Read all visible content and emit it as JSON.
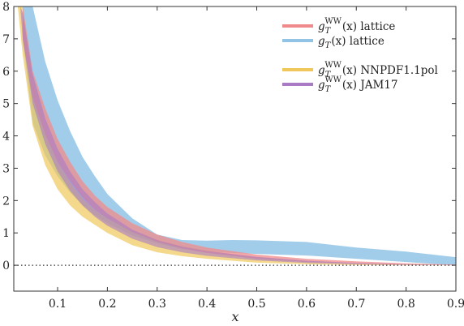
{
  "chart_data": {
    "type": "area",
    "xlabel": "x",
    "ylabel": "",
    "xlim": [
      0.012,
      0.9
    ],
    "ylim": [
      -0.8,
      8
    ],
    "xticks": [
      "0.1",
      "0.2",
      "0.3",
      "0.4",
      "0.5",
      "0.6",
      "0.7",
      "0.8",
      "0.9"
    ],
    "yticks": [
      "0",
      "1",
      "2",
      "3",
      "4",
      "5",
      "6",
      "7",
      "8"
    ],
    "grid": false,
    "legend_position": "top-right",
    "zero_line": "dotted",
    "series": [
      {
        "name": "g_T^WW(x) lattice",
        "legend": "gTWW(x) lattice",
        "color": "#f08a8a",
        "x": [
          0.03,
          0.05,
          0.075,
          0.1,
          0.125,
          0.15,
          0.175,
          0.2,
          0.25,
          0.3,
          0.35,
          0.4,
          0.5,
          0.6,
          0.7,
          0.8,
          0.9
        ],
        "upper": [
          8.0,
          6.0,
          4.85,
          3.9,
          3.2,
          2.6,
          2.15,
          1.8,
          1.3,
          0.95,
          0.72,
          0.55,
          0.33,
          0.2,
          0.12,
          0.06,
          0.02
        ],
        "lower": [
          7.0,
          5.2,
          4.05,
          3.2,
          2.6,
          2.1,
          1.72,
          1.45,
          1.02,
          0.72,
          0.52,
          0.38,
          0.2,
          0.1,
          0.05,
          0.02,
          0.0
        ]
      },
      {
        "name": "g_T(x) lattice",
        "legend": "gT(x) lattice",
        "color": "#92c4e6",
        "x": [
          0.03,
          0.05,
          0.075,
          0.1,
          0.125,
          0.15,
          0.175,
          0.2,
          0.25,
          0.3,
          0.35,
          0.4,
          0.45,
          0.5,
          0.6,
          0.7,
          0.8,
          0.9
        ],
        "upper": [
          8.0,
          8.0,
          6.3,
          5.1,
          4.15,
          3.35,
          2.75,
          2.2,
          1.45,
          0.95,
          0.78,
          0.76,
          0.78,
          0.77,
          0.72,
          0.55,
          0.42,
          0.25
        ],
        "lower": [
          7.0,
          4.4,
          3.4,
          2.75,
          2.25,
          1.85,
          1.55,
          1.3,
          0.92,
          0.68,
          0.5,
          0.42,
          0.38,
          0.35,
          0.3,
          0.2,
          0.1,
          0.0
        ]
      },
      {
        "name": "g_T^WW(x) NNPDF1.1pol",
        "legend": "gTWW(x) NNPDF1.1pol",
        "color": "#f0c75a",
        "x": [
          0.02,
          0.03,
          0.05,
          0.075,
          0.1,
          0.125,
          0.15,
          0.175,
          0.2,
          0.25,
          0.3,
          0.35,
          0.4,
          0.5,
          0.6,
          0.7,
          0.8,
          0.9
        ],
        "upper": [
          8.0,
          8.0,
          5.6,
          4.2,
          3.2,
          2.55,
          2.05,
          1.7,
          1.45,
          1.05,
          0.78,
          0.58,
          0.45,
          0.25,
          0.13,
          0.06,
          0.02,
          0.0
        ],
        "lower": [
          8.0,
          6.5,
          4.3,
          3.1,
          2.35,
          1.85,
          1.5,
          1.25,
          1.0,
          0.62,
          0.4,
          0.28,
          0.2,
          0.08,
          0.03,
          0.01,
          0.0,
          0.0
        ]
      },
      {
        "name": "g_T^WW(x) JAM17",
        "legend": "gTWW(x) JAM17",
        "color": "#a97bc4",
        "x": [
          0.025,
          0.03,
          0.05,
          0.075,
          0.1,
          0.125,
          0.15,
          0.175,
          0.2,
          0.25,
          0.3,
          0.35,
          0.4,
          0.5,
          0.6,
          0.7,
          0.8,
          0.9
        ],
        "upper": [
          8.0,
          7.8,
          5.9,
          4.55,
          3.6,
          2.9,
          2.35,
          1.95,
          1.6,
          1.1,
          0.78,
          0.58,
          0.44,
          0.26,
          0.14,
          0.07,
          0.03,
          0.0
        ],
        "lower": [
          8.0,
          7.0,
          5.0,
          3.75,
          2.9,
          2.3,
          1.85,
          1.5,
          1.22,
          0.82,
          0.56,
          0.4,
          0.29,
          0.15,
          0.07,
          0.03,
          0.01,
          0.0
        ]
      }
    ]
  }
}
